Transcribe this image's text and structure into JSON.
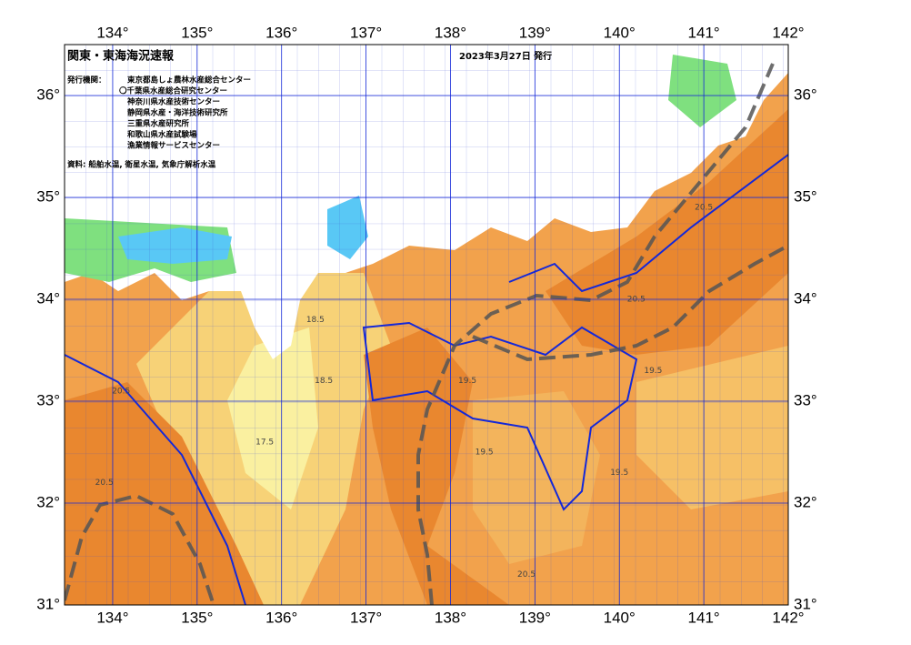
{
  "map": {
    "title": "関東・東海海況速報",
    "date": "2023年3月27日 発行",
    "issuer_label": "発行機関：",
    "issuers": [
      "東京都島しょ農林水産総合センター",
      "〇千葉県水産総合研究センター",
      "神奈川県水産技術センター",
      "静岡県水産・海洋技術研究所",
      "三重県水産研究所",
      "和歌山県水産試験場",
      "漁業情報サービスセンター"
    ],
    "source": "資料: 船舶水温, 衛星水温, 気象庁解析水温",
    "xlim": [
      133.43,
      142
    ],
    "ylim": [
      31,
      36.5
    ],
    "xticks": [
      {
        "value": 134,
        "label": "134°"
      },
      {
        "value": 135,
        "label": "135°"
      },
      {
        "value": 136,
        "label": "136°"
      },
      {
        "value": 137,
        "label": "137°"
      },
      {
        "value": 138,
        "label": "138°"
      },
      {
        "value": 139,
        "label": "139°"
      },
      {
        "value": 140,
        "label": "140°"
      },
      {
        "value": 141,
        "label": "141°"
      },
      {
        "value": 142,
        "label": "142°"
      }
    ],
    "yticks": [
      {
        "value": 31,
        "label": "31°"
      },
      {
        "value": 32,
        "label": "32°"
      },
      {
        "value": 33,
        "label": "33°"
      },
      {
        "value": 34,
        "label": "34°"
      },
      {
        "value": 35,
        "label": "35°"
      },
      {
        "value": 36,
        "label": "36°"
      }
    ],
    "isotherm_labels": [
      {
        "label": "20.5",
        "lon": 133.9,
        "lat": 32.2
      },
      {
        "label": "20.5",
        "lon": 134.1,
        "lat": 33.1
      },
      {
        "label": "18.5",
        "lon": 136.4,
        "lat": 33.8
      },
      {
        "label": "18.5",
        "lon": 136.5,
        "lat": 33.2
      },
      {
        "label": "17.5",
        "lon": 135.8,
        "lat": 32.6
      },
      {
        "label": "19.5",
        "lon": 138.2,
        "lat": 33.2
      },
      {
        "label": "19.5",
        "lon": 138.4,
        "lat": 32.5
      },
      {
        "label": "20.5",
        "lon": 140.2,
        "lat": 34.0
      },
      {
        "label": "20.5",
        "lon": 141.0,
        "lat": 34.9
      },
      {
        "label": "19.5",
        "lon": 140.4,
        "lat": 33.3
      },
      {
        "label": "19.5",
        "lon": 140.0,
        "lat": 32.3
      },
      {
        "label": "20.5",
        "lon": 138.9,
        "lat": 31.3
      }
    ]
  }
}
